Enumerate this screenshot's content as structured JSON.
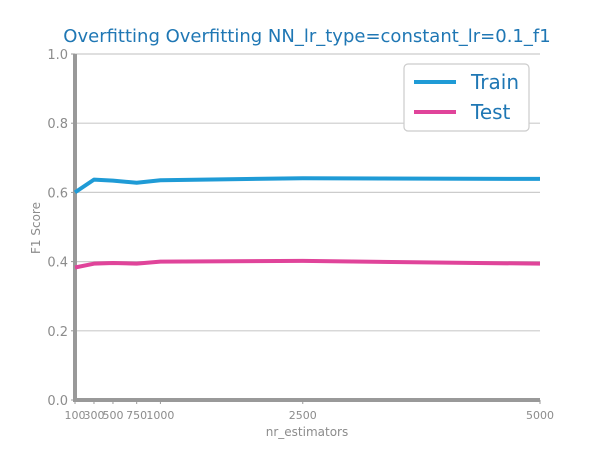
{
  "chart_data": {
    "type": "line",
    "title": "Overfitting Overfitting NN_lr_type=constant_lr=0.1_f1",
    "xlabel": "nr_estimators",
    "ylabel": "F1 Score",
    "x": [
      100,
      300,
      500,
      750,
      1000,
      2500,
      5000
    ],
    "x_tick_labels": [
      "100",
      "300",
      "500",
      "750",
      "1000",
      "2500",
      "5000"
    ],
    "xlim": [
      100,
      5000
    ],
    "ylim": [
      0.0,
      1.0
    ],
    "y_ticks": [
      0.0,
      0.2,
      0.4,
      0.6,
      0.8,
      1.0
    ],
    "y_tick_labels": [
      "0.0",
      "0.2",
      "0.4",
      "0.6",
      "0.8",
      "1.0"
    ],
    "grid": "horizontal",
    "legend_position": "top-right",
    "series": [
      {
        "name": "Train",
        "color": "#1f9bd6",
        "values": [
          0.6,
          0.637,
          0.634,
          0.628,
          0.635,
          0.641,
          0.639
        ]
      },
      {
        "name": "Test",
        "color": "#e0449a",
        "values": [
          0.383,
          0.394,
          0.396,
          0.394,
          0.4,
          0.402,
          0.394
        ]
      }
    ],
    "colors": {
      "title": "#1f77b4",
      "axis_text": "#8c8c8c",
      "legend_text": "#1f77b4",
      "axis_line": "#999999",
      "grid": "#cccccc"
    }
  }
}
